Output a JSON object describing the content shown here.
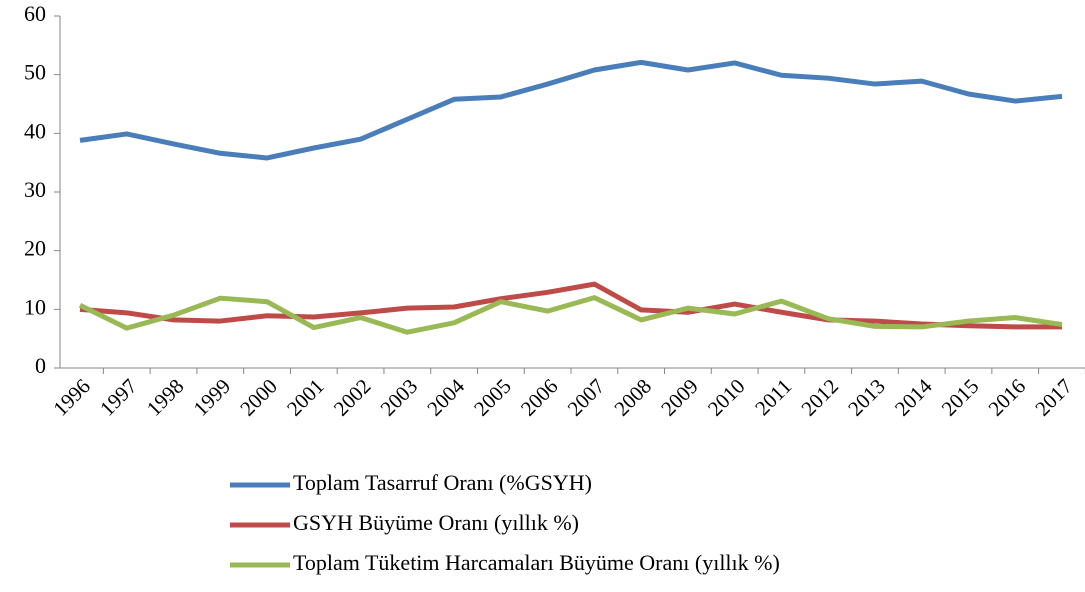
{
  "chart_data": {
    "type": "line",
    "categories": [
      "1996",
      "1997",
      "1998",
      "1999",
      "2000",
      "2001",
      "2002",
      "2003",
      "2004",
      "2005",
      "2006",
      "2007",
      "2008",
      "2009",
      "2010",
      "2011",
      "2012",
      "2013",
      "2014",
      "2015",
      "2016",
      "2017"
    ],
    "series": [
      {
        "name": "Toplam Tasarruf Oranı (%GSYH)",
        "color": "#4a7ebb",
        "values": [
          38.8,
          39.9,
          38.2,
          36.6,
          35.8,
          37.5,
          39.0,
          42.4,
          45.8,
          46.2,
          48.4,
          50.8,
          52.1,
          50.8,
          52.0,
          49.9,
          49.4,
          48.4,
          48.9,
          46.7,
          45.5,
          46.3
        ]
      },
      {
        "name": "GSYH Büyüme Oranı (yıllık %)",
        "color": "#be4b48",
        "values": [
          10.0,
          9.4,
          8.2,
          8.0,
          8.9,
          8.7,
          9.4,
          10.2,
          10.4,
          11.8,
          12.9,
          14.3,
          9.9,
          9.5,
          10.9,
          9.5,
          8.2,
          8.0,
          7.5,
          7.2,
          7.0,
          7.0
        ]
      },
      {
        "name": "Toplam Tüketim Harcamaları Büyüme Oranı (yıllık %)",
        "color": "#98b954",
        "values": [
          10.7,
          6.8,
          9.0,
          11.9,
          11.3,
          6.9,
          8.6,
          6.1,
          7.7,
          11.3,
          9.7,
          12.0,
          8.2,
          10.2,
          9.2,
          11.4,
          8.4,
          7.1,
          7.0,
          8.0,
          8.6,
          7.4
        ]
      }
    ],
    "ylim": [
      0,
      60
    ],
    "yticks": [
      0,
      10,
      20,
      30,
      40,
      50,
      60
    ],
    "grid": false,
    "legend": "bottom"
  }
}
